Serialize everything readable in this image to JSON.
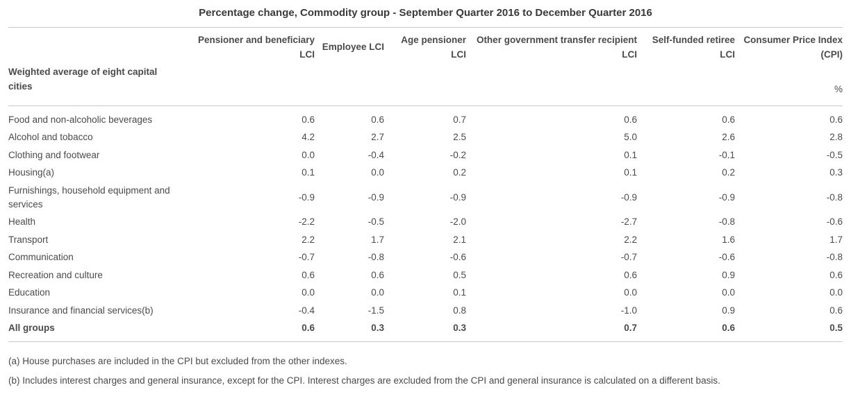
{
  "title": "Percentage change, Commodity group - September Quarter 2016 to December Quarter 2016",
  "table": {
    "row_header": "Weighted average of eight capital cities",
    "unit_label": "%",
    "columns": [
      "Pensioner and beneficiary LCI",
      "Employee LCI",
      "Age pensioner LCI",
      "Other government transfer recipient LCI",
      "Self-funded retiree LCI",
      "Consumer Price Index (CPI)"
    ],
    "rows": [
      {
        "label": "Food and non-alcoholic beverages",
        "values": [
          "0.6",
          "0.6",
          "0.7",
          "0.6",
          "0.6",
          "0.6"
        ],
        "bold": false
      },
      {
        "label": "Alcohol and tobacco",
        "values": [
          "4.2",
          "2.7",
          "2.5",
          "5.0",
          "2.6",
          "2.8"
        ],
        "bold": false
      },
      {
        "label": "Clothing and footwear",
        "values": [
          "0.0",
          "-0.4",
          "-0.2",
          "0.1",
          "-0.1",
          "-0.5"
        ],
        "bold": false
      },
      {
        "label": "Housing(a)",
        "values": [
          "0.1",
          "0.0",
          "0.2",
          "0.1",
          "0.2",
          "0.3"
        ],
        "bold": false
      },
      {
        "label": "Furnishings, household equipment and services",
        "values": [
          "-0.9",
          "-0.9",
          "-0.9",
          "-0.9",
          "-0.9",
          "-0.8"
        ],
        "bold": false
      },
      {
        "label": "Health",
        "values": [
          "-2.2",
          "-0.5",
          "-2.0",
          "-2.7",
          "-0.8",
          "-0.6"
        ],
        "bold": false
      },
      {
        "label": "Transport",
        "values": [
          "2.2",
          "1.7",
          "2.1",
          "2.2",
          "1.6",
          "1.7"
        ],
        "bold": false
      },
      {
        "label": "Communication",
        "values": [
          "-0.7",
          "-0.8",
          "-0.6",
          "-0.7",
          "-0.6",
          "-0.8"
        ],
        "bold": false
      },
      {
        "label": "Recreation and culture",
        "values": [
          "0.6",
          "0.6",
          "0.5",
          "0.6",
          "0.9",
          "0.6"
        ],
        "bold": false
      },
      {
        "label": "Education",
        "values": [
          "0.0",
          "0.0",
          "0.1",
          "0.0",
          "0.0",
          "0.0"
        ],
        "bold": false
      },
      {
        "label": "Insurance and financial services(b)",
        "values": [
          "-0.4",
          "-1.5",
          "0.8",
          "-1.0",
          "0.9",
          "0.6"
        ],
        "bold": false
      },
      {
        "label": "All groups",
        "values": [
          "0.6",
          "0.3",
          "0.3",
          "0.7",
          "0.6",
          "0.5"
        ],
        "bold": true
      }
    ]
  },
  "footnotes": [
    "(a) House purchases are included in the CPI but excluded from the other indexes.",
    "(b) Includes interest charges and general insurance, except for the CPI. Interest charges are excluded from the CPI and general insurance is calculated on a different basis."
  ],
  "chart_data": {
    "type": "table",
    "title": "Percentage change, Commodity group - September Quarter 2016 to December Quarter 2016",
    "unit": "%",
    "row_header": "Weighted average of eight capital cities",
    "categories": [
      "Food and non-alcoholic beverages",
      "Alcohol and tobacco",
      "Clothing and footwear",
      "Housing(a)",
      "Furnishings, household equipment and services",
      "Health",
      "Transport",
      "Communication",
      "Recreation and culture",
      "Education",
      "Insurance and financial services(b)",
      "All groups"
    ],
    "series": [
      {
        "name": "Pensioner and beneficiary LCI",
        "values": [
          0.6,
          4.2,
          0.0,
          0.1,
          -0.9,
          -2.2,
          2.2,
          -0.7,
          0.6,
          0.0,
          -0.4,
          0.6
        ]
      },
      {
        "name": "Employee LCI",
        "values": [
          0.6,
          2.7,
          -0.4,
          0.0,
          -0.9,
          -0.5,
          1.7,
          -0.8,
          0.6,
          0.0,
          -1.5,
          0.3
        ]
      },
      {
        "name": "Age pensioner LCI",
        "values": [
          0.7,
          2.5,
          -0.2,
          0.2,
          -0.9,
          -2.0,
          2.1,
          -0.6,
          0.5,
          0.1,
          0.8,
          0.3
        ]
      },
      {
        "name": "Other government transfer recipient LCI",
        "values": [
          0.6,
          5.0,
          0.1,
          0.1,
          -0.9,
          -2.7,
          2.2,
          -0.7,
          0.6,
          0.0,
          -1.0,
          0.7
        ]
      },
      {
        "name": "Self-funded retiree LCI",
        "values": [
          0.6,
          2.6,
          -0.1,
          0.2,
          -0.9,
          -0.8,
          1.6,
          -0.6,
          0.9,
          0.0,
          0.9,
          0.6
        ]
      },
      {
        "name": "Consumer Price Index (CPI)",
        "values": [
          0.6,
          2.8,
          -0.5,
          0.3,
          -0.8,
          -0.6,
          1.7,
          -0.8,
          0.6,
          0.0,
          0.6,
          0.5
        ]
      }
    ]
  }
}
